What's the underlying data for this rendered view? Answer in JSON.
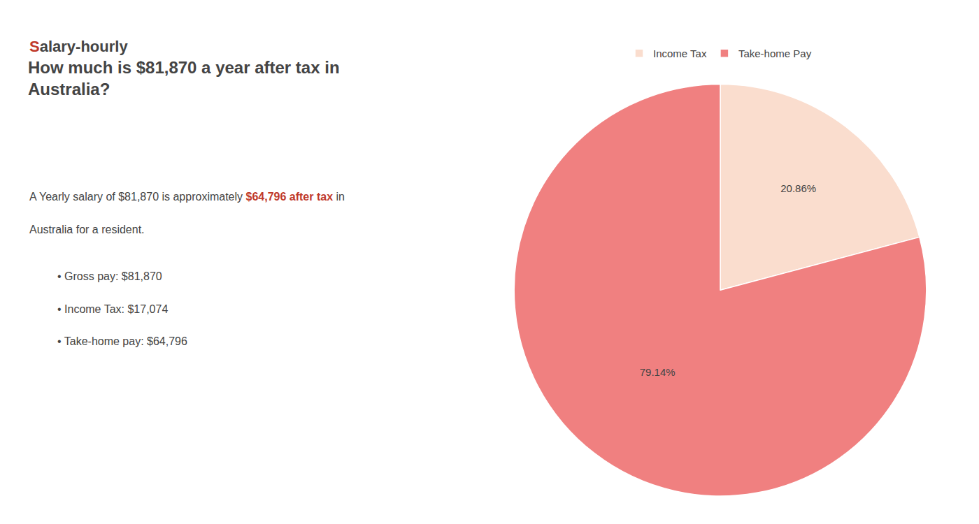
{
  "chart_data": {
    "type": "pie",
    "title": [
      "How much is $81,870 a year after tax in",
      "Australia?"
    ],
    "annotations": [
      [
        {
          "text": "S",
          "color": "#c0392b"
        },
        {
          "text": "alary-hourly"
        }
      ],
      [
        {
          "text": "A Yearly salary of $81,870 is approximately "
        },
        {
          "text": "$64,796 after tax",
          "color": "#c0392b"
        },
        {
          "text": " in"
        }
      ],
      [
        {
          "text": "Australia for a resident."
        }
      ],
      [
        {
          "text": "• Gross pay: $81,870"
        }
      ],
      [
        {
          "text": "• Income Tax: $17,074"
        }
      ],
      [
        {
          "text": "• Take-home pay: $64,796"
        }
      ]
    ],
    "categories": [
      "Income Tax",
      "Take-home Pay"
    ],
    "values": [
      20.86,
      79.14
    ],
    "value_labels": [
      "20.86%",
      "79.14%"
    ],
    "colors": [
      "#faddce",
      "#f08080"
    ],
    "data_labels": true,
    "legend": "top"
  }
}
